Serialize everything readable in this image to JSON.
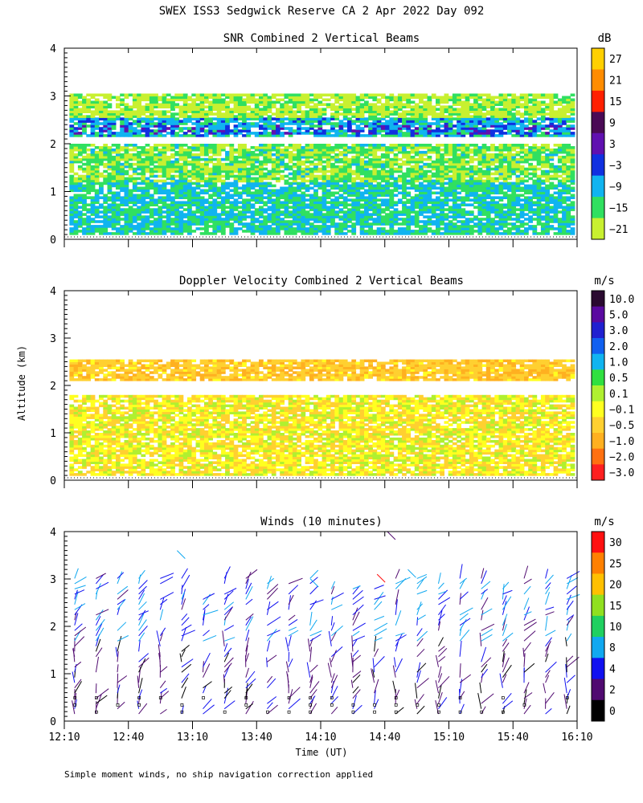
{
  "figure": {
    "title": "SWEX ISS3 Sedgwick Reserve CA   2 Apr 2022 Day 092",
    "ylabel": "Altitude (km)",
    "xlabel": "Time (UT)",
    "footnote": "Simple moment winds, no ship navigation correction applied"
  },
  "chart_data": [
    {
      "type": "heatmap",
      "title": "SNR Combined 2 Vertical Beams",
      "units": "dB",
      "ylabel": "Altitude (km)",
      "ylim": [
        0,
        4
      ],
      "yticks": [
        "0",
        "1",
        "2",
        "3",
        "4"
      ],
      "xlim": [
        "12:10",
        "16:10"
      ],
      "colorbar": {
        "labels": [
          "27",
          "21",
          "15",
          "9",
          "3",
          "−3",
          "−9",
          "−15",
          "−21"
        ],
        "colors": [
          "#ffd000",
          "#ff8c00",
          "#ff2000",
          "#4a0a55",
          "#6010b0",
          "#1030e0",
          "#10b4f0",
          "#30e060",
          "#c8f030"
        ]
      },
      "layers": [
        {
          "from_km": 2.15,
          "to_km": 2.5,
          "value_dB": -10
        },
        {
          "from_km": 2.2,
          "to_km": 2.35,
          "value_dB": -3
        },
        {
          "from_km": 0.1,
          "to_km": 1.2,
          "value_dB": -12
        },
        {
          "from_km": 1.2,
          "to_km": 2.0,
          "value_dB": -17
        },
        {
          "from_km": 2.5,
          "to_km": 3.0,
          "value_dB": -20
        }
      ]
    },
    {
      "type": "heatmap",
      "title": "Doppler Velocity Combined 2 Vertical Beams",
      "units": "m/s",
      "ylabel": "Altitude (km)",
      "ylim": [
        0,
        4
      ],
      "yticks": [
        "0",
        "1",
        "2",
        "3",
        "4"
      ],
      "xlim": [
        "12:10",
        "16:10"
      ],
      "colorbar": {
        "labels": [
          "10.0",
          "5.0",
          "3.0",
          "2.0",
          "1.0",
          "0.5",
          "0.1",
          "−0.1",
          "−0.5",
          "−1.0",
          "−2.0",
          "−3.0"
        ],
        "colors": [
          "#2a0a30",
          "#5a0aa0",
          "#2020d0",
          "#1060f0",
          "#10b4f0",
          "#30e040",
          "#b0f030",
          "#ffff20",
          "#ffd030",
          "#ffb020",
          "#ff7010",
          "#ff2020"
        ]
      },
      "layers": [
        {
          "from_km": 2.1,
          "to_km": 2.5,
          "value_ms": -0.6
        },
        {
          "from_km": 0.1,
          "to_km": 1.8,
          "value_ms": -0.2
        }
      ]
    },
    {
      "type": "wind barbs",
      "title": "Winds (10 minutes)",
      "units": "m/s",
      "ylabel": "Altitude (km)",
      "ylim": [
        0,
        4
      ],
      "yticks": [
        "0",
        "1",
        "2",
        "3",
        "4"
      ],
      "xlabel": "Time (UT)",
      "xticks": [
        "12:10",
        "12:40",
        "13:10",
        "13:40",
        "14:10",
        "14:40",
        "15:10",
        "15:40",
        "16:10"
      ],
      "colorbar": {
        "labels": [
          "30",
          "25",
          "20",
          "15",
          "10",
          "8",
          "4",
          "2",
          "0"
        ],
        "colors": [
          "#ff1010",
          "#ff8000",
          "#ffc000",
          "#90e020",
          "#20d060",
          "#10a8f0",
          "#1010f0",
          "#500a70",
          "#000000"
        ]
      },
      "profile_interval_min": 10,
      "profiles_start": "12:10",
      "profiles_end": "16:10"
    }
  ]
}
